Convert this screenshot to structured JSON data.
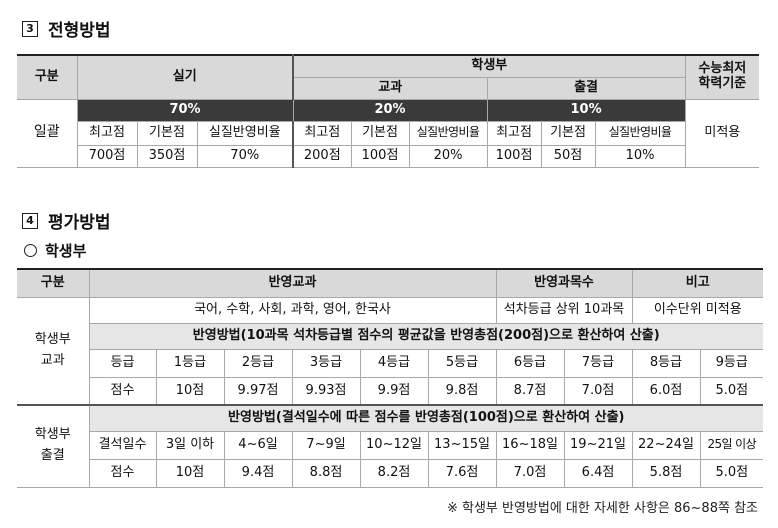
{
  "section3": {
    "num": "3",
    "title": "전형방법"
  },
  "t1": {
    "gubun": "구분",
    "silgi": "실기",
    "haksaengbu": "학생부",
    "gyogwa": "교과",
    "chulgyeol": "출결",
    "suneung": [
      "수능최저",
      "학력기준"
    ],
    "pct": [
      "70%",
      "20%",
      "10%"
    ],
    "row_label": "일괄",
    "heads": [
      "최고점",
      "기본점",
      "실질반영비율",
      "최고점",
      "기본점",
      "실질반영비율",
      "최고점",
      "기본점",
      "실질반영비율"
    ],
    "vals": [
      "700점",
      "350점",
      "70%",
      "200점",
      "100점",
      "20%",
      "100점",
      "50점",
      "10%"
    ],
    "suneung_val": "미적용"
  },
  "section4": {
    "num": "4",
    "title": "평가방법"
  },
  "sub": {
    "title": "학생부"
  },
  "t2": {
    "gubun": "구분",
    "h_subject": "반영교과",
    "h_count": "반영과목수",
    "h_note": "비고",
    "subjects": "국어, 수학, 사회, 과학, 영어, 한국사",
    "count": "석차등급 상위 10과목",
    "note": "이수단위 미적용",
    "label_gyogwa": [
      "학생부",
      "교과"
    ],
    "method_gyogwa": "반영방법(10과목 석차등급별 점수의 평균값을 반영총점(200점)으로 환산하여 산출)",
    "grade_row": [
      "등급",
      "1등급",
      "2등급",
      "3등급",
      "4등급",
      "5등급",
      "6등급",
      "7등급",
      "8등급",
      "9등급"
    ],
    "grade_score": [
      "점수",
      "10점",
      "9.97점",
      "9.93점",
      "9.9점",
      "9.8점",
      "8.7점",
      "7.0점",
      "6.0점",
      "5.0점"
    ],
    "label_chul": [
      "학생부",
      "출결"
    ],
    "method_chul": "반영방법(결석일수에 따른 점수를 반영총점(100점)으로 환산하여 산출)",
    "absent_row": [
      "결석일수",
      "3일 이하",
      "4~6일",
      "7~9일",
      "10~12일",
      "13~15일",
      "16~18일",
      "19~21일",
      "22~24일",
      "25일 이상"
    ],
    "absent_score": [
      "점수",
      "10점",
      "9.4점",
      "8.8점",
      "8.2점",
      "7.6점",
      "7.0점",
      "6.4점",
      "5.8점",
      "5.0점"
    ]
  },
  "footnote": "※ 학생부 반영방법에 대한 자세한 사항은 86~88쪽 참조"
}
